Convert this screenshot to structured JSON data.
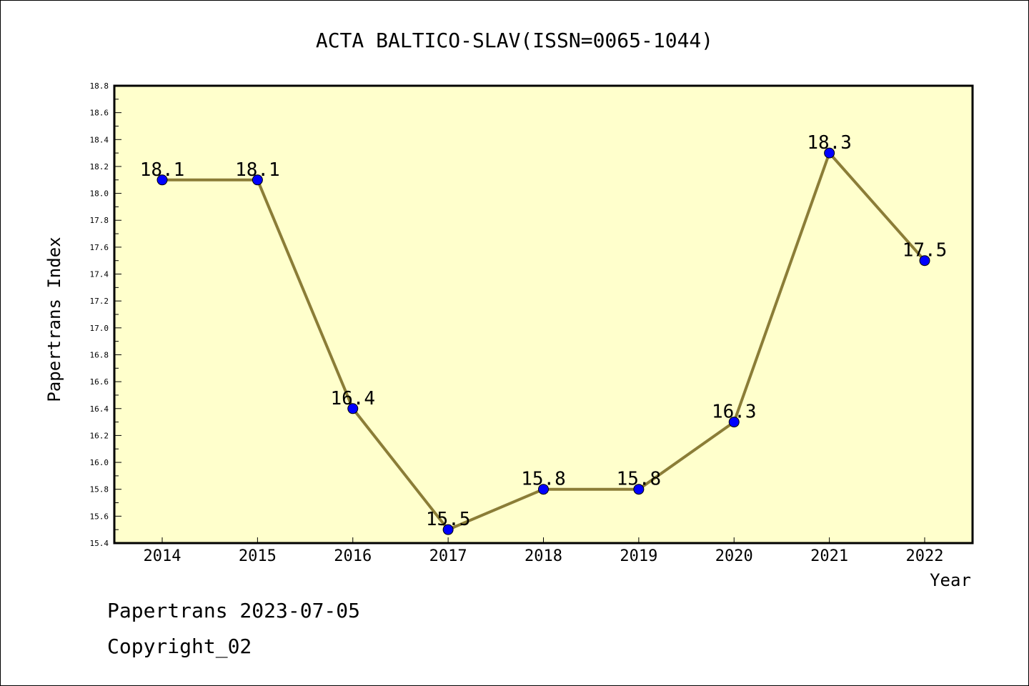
{
  "chart_data": {
    "type": "line",
    "title": "ACTA BALTICO-SLAV(ISSN=0065-1044)",
    "xlabel": "Year",
    "ylabel": "Papertrans Index",
    "categories": [
      "2014",
      "2015",
      "2016",
      "2017",
      "2018",
      "2019",
      "2020",
      "2021",
      "2022"
    ],
    "values": [
      18.1,
      18.1,
      16.4,
      15.5,
      15.8,
      15.8,
      16.3,
      18.3,
      17.5
    ],
    "data_labels": [
      "18.1",
      "18.1",
      "16.4",
      "15.5",
      "15.8",
      "15.8",
      "16.3",
      "18.3",
      "17.5"
    ],
    "ylim": [
      15.4,
      18.8
    ],
    "yticks": [
      "15.4",
      "15.6",
      "15.8",
      "16.0",
      "16.2",
      "16.4",
      "16.6",
      "16.8",
      "17.0",
      "17.2",
      "17.4",
      "17.6",
      "17.8",
      "18.0",
      "18.2",
      "18.4",
      "18.6",
      "18.8"
    ],
    "grid": false,
    "legend": "none",
    "colors": {
      "plot_background": "#ffffcc",
      "line": "#8b7d37",
      "marker": "#0000ff"
    }
  },
  "footer": {
    "line1": "Papertrans 2023-07-05",
    "line2": "Copyright_02"
  }
}
